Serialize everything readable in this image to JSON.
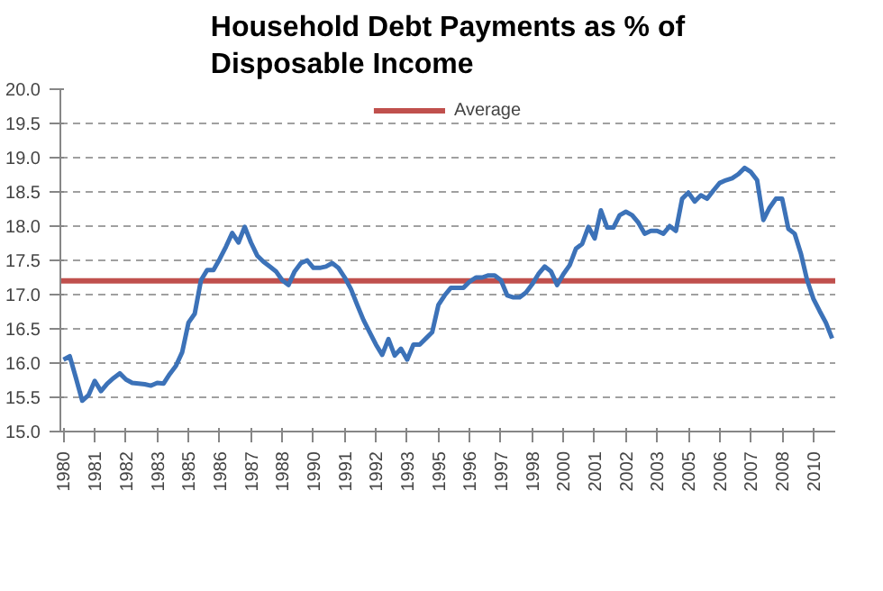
{
  "chart_data": {
    "type": "line",
    "title": "Household Debt Payments as % of\nDisposable Income",
    "categories": [
      "1980",
      null,
      null,
      null,
      null,
      "1981",
      null,
      null,
      null,
      null,
      "1982",
      null,
      null,
      null,
      null,
      "1983",
      null,
      null,
      null,
      null,
      "1985",
      null,
      null,
      null,
      null,
      "1986",
      null,
      null,
      null,
      null,
      "1987",
      null,
      null,
      null,
      null,
      "1988",
      null,
      null,
      null,
      null,
      "1990",
      null,
      null,
      null,
      null,
      "1991",
      null,
      null,
      null,
      null,
      "1992",
      null,
      null,
      null,
      null,
      "1993",
      null,
      null,
      null,
      null,
      "1995",
      null,
      null,
      null,
      null,
      "1996",
      null,
      null,
      null,
      null,
      "1997",
      null,
      null,
      null,
      null,
      "1998",
      null,
      null,
      null,
      null,
      "2000",
      null,
      null,
      null,
      null,
      "2001",
      null,
      null,
      null,
      null,
      "2002",
      null,
      null,
      null,
      null,
      "2003",
      null,
      null,
      null,
      null,
      "2005",
      null,
      null,
      null,
      null,
      "2006",
      null,
      null,
      null,
      null,
      "2007",
      null,
      null,
      null,
      null,
      "2008",
      null,
      null,
      null,
      null,
      "2010",
      null,
      null,
      null
    ],
    "series": [
      {
        "color": "#3c72b8",
        "values": [
          16.05,
          16.1,
          15.78,
          15.45,
          15.53,
          15.74,
          15.59,
          15.7,
          15.78,
          15.85,
          15.76,
          15.71,
          15.7,
          15.69,
          15.67,
          15.71,
          15.7,
          15.84,
          15.96,
          16.16,
          16.59,
          16.72,
          17.21,
          17.36,
          17.36,
          17.52,
          17.7,
          17.9,
          17.76,
          17.99,
          17.76,
          17.57,
          17.48,
          17.41,
          17.34,
          17.21,
          17.14,
          17.34,
          17.46,
          17.5,
          17.39,
          17.39,
          17.41,
          17.46,
          17.39,
          17.25,
          17.08,
          16.85,
          16.63,
          16.45,
          16.27,
          16.12,
          16.35,
          16.11,
          16.21,
          16.05,
          16.27,
          16.27,
          16.36,
          16.45,
          16.85,
          16.99,
          17.1,
          17.1,
          17.1,
          17.19,
          17.25,
          17.25,
          17.28,
          17.28,
          17.21,
          16.99,
          16.96,
          16.96,
          17.03,
          17.15,
          17.3,
          17.41,
          17.34,
          17.14,
          17.3,
          17.43,
          17.67,
          17.74,
          17.99,
          17.82,
          18.23,
          17.98,
          17.98,
          18.16,
          18.21,
          18.16,
          18.05,
          17.89,
          17.93,
          17.93,
          17.89,
          18.0,
          17.93,
          18.4,
          18.49,
          18.36,
          18.45,
          18.4,
          18.52,
          18.63,
          18.67,
          18.7,
          18.76,
          18.85,
          18.79,
          18.67,
          18.09,
          18.27,
          18.4,
          18.4,
          17.96,
          17.89,
          17.6,
          17.21,
          16.94,
          16.76,
          16.59,
          16.36
        ]
      }
    ],
    "ylim": [
      15,
      20
    ],
    "yticks": [
      {
        "value": 15,
        "label": "15.0"
      },
      {
        "value": 15.5,
        "label": "15.5"
      },
      {
        "value": 16,
        "label": "16.0"
      },
      {
        "value": 16.5,
        "label": "16.5"
      },
      {
        "value": 17,
        "label": "17.0"
      },
      {
        "value": 17.5,
        "label": "17.5"
      },
      {
        "value": 18,
        "label": "18.0"
      },
      {
        "value": 18.5,
        "label": "18.5"
      },
      {
        "value": 19,
        "label": "19.0"
      },
      {
        "value": 19.5,
        "label": "19.5"
      },
      {
        "value": 20,
        "label": "20.0"
      }
    ],
    "ref_lines": [
      {
        "axis": "y",
        "value": 17.2,
        "label": "Average",
        "color": "#c0504d"
      }
    ],
    "grid": "y",
    "legend": "top"
  }
}
